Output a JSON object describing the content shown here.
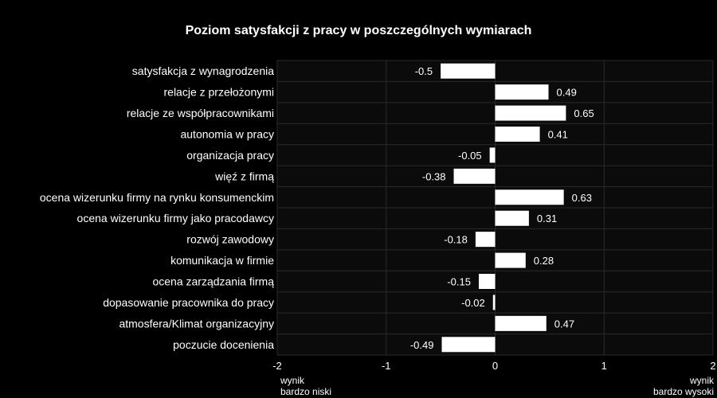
{
  "chart_data": {
    "type": "bar",
    "orientation": "horizontal",
    "title": "Poziom satysfakcji z pracy w poszczególnych wymiarach",
    "categories": [
      "satysfakcja z wynagrodzenia",
      "relacje z przełożonymi",
      "relacje ze współpracownikami",
      "autonomia w pracy",
      "organizacja pracy",
      "więź z firmą",
      "ocena wizerunku firmy na rynku konsumenckim",
      "ocena wizerunku firmy jako pracodawcy",
      "rozwój zawodowy",
      "komunikacja w firmie",
      "ocena zarządzania firmą",
      "dopasowanie pracownika do pracy",
      "atmosfera/Klimat organizacyjny",
      "poczucie docenienia"
    ],
    "values": [
      -0.5,
      0.49,
      0.65,
      0.41,
      -0.05,
      -0.38,
      0.63,
      0.31,
      -0.18,
      0.28,
      -0.15,
      -0.02,
      0.47,
      -0.49
    ],
    "value_labels": [
      "-0.5",
      "0.49",
      "0.65",
      "0.41",
      "-0.05",
      "-0.38",
      "0.63",
      "0.31",
      "-0.18",
      "0.28",
      "-0.15",
      "-0.02",
      "0.47",
      "-0.49"
    ],
    "xlim": [
      -2,
      2
    ],
    "x_ticks": [
      -2,
      -1,
      0,
      1,
      2
    ],
    "x_tick_labels": [
      "-2",
      "-1",
      "0",
      "1",
      "2"
    ],
    "low_end_label": [
      "wynik",
      "bardzo niski"
    ],
    "high_end_label": [
      "wynik",
      "bardzo wysoki"
    ],
    "grid": true,
    "colors": {
      "background": "#000000",
      "bar": "#ffffff",
      "text": "#ffffff",
      "grid": "#2a2a2a"
    }
  }
}
